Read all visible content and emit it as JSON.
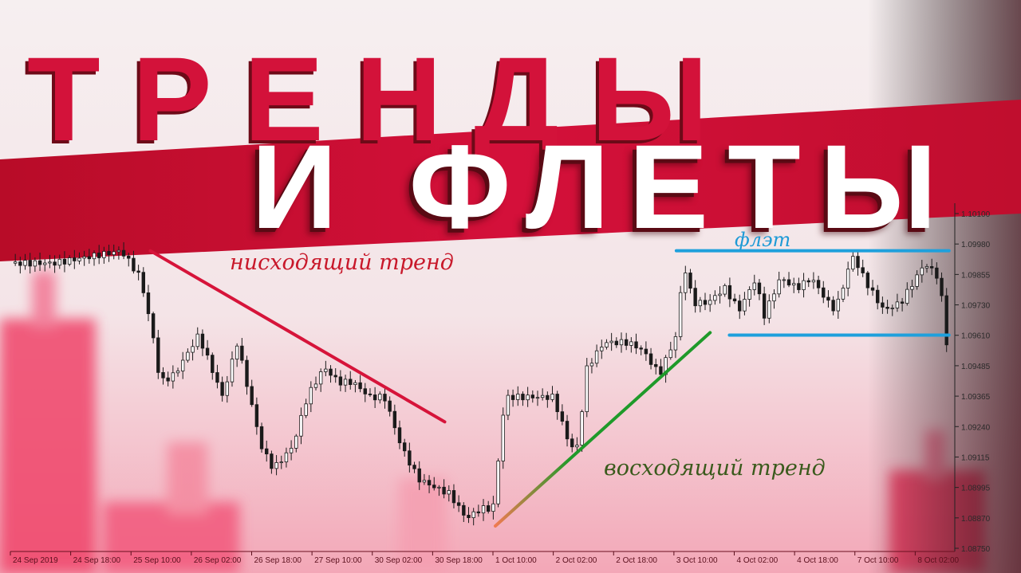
{
  "title": {
    "line1": "ТРЕНДЫ",
    "line2": "И ФЛЕТЫ"
  },
  "colors": {
    "band": "#c8102e",
    "title_line1": "#d3123a",
    "title_line2": "#ffffff",
    "downtrend": "#d6143a",
    "uptrend_start": "#f07a50",
    "uptrend_end": "#1f9a2a",
    "flat": "#1ea0dc",
    "candles": "#1a1a1a"
  },
  "chart_data": {
    "type": "candlestick",
    "x_tick_labels": [
      "24 Sep 2019",
      "24 Sep 18:00",
      "25 Sep 10:00",
      "26 Sep 02:00",
      "26 Sep 18:00",
      "27 Sep 10:00",
      "30 Sep 02:00",
      "30 Sep 18:00",
      "1 Oct 10:00",
      "2 Oct 02:00",
      "2 Oct 18:00",
      "3 Oct 10:00",
      "4 Oct 02:00",
      "4 Oct 18:00",
      "7 Oct 10:00",
      "8 Oct 02:00"
    ],
    "y_tick_labels": [
      "1.10100",
      "1.09980",
      "1.09855",
      "1.09730",
      "1.09610",
      "1.09485",
      "1.09365",
      "1.09240",
      "1.09115",
      "1.08995",
      "1.08870",
      "1.08750"
    ],
    "ylim": [
      1.0875,
      1.101
    ],
    "price_path": [
      [
        0,
        1.099
      ],
      [
        0.9,
        1.099
      ],
      [
        2.3,
        1.0995
      ],
      [
        2.7,
        1.0984
      ],
      [
        2.95,
        1.0961
      ],
      [
        3.1,
        1.0942
      ],
      [
        3.4,
        1.0945
      ],
      [
        3.9,
        1.0961
      ],
      [
        4.4,
        1.0936
      ],
      [
        4.7,
        1.0958
      ],
      [
        5.2,
        1.0916
      ],
      [
        5.45,
        1.0907
      ],
      [
        5.85,
        1.0916
      ],
      [
        6.15,
        1.0936
      ],
      [
        6.5,
        1.0948
      ],
      [
        6.8,
        1.0942
      ],
      [
        7.1,
        1.0942
      ],
      [
        7.45,
        1.0936
      ],
      [
        7.75,
        1.0936
      ],
      [
        8.1,
        1.0916
      ],
      [
        8.45,
        1.0903
      ],
      [
        8.75,
        1.09
      ],
      [
        9.1,
        1.0897
      ],
      [
        9.45,
        1.0887
      ],
      [
        9.75,
        1.0891
      ],
      [
        10.0,
        1.0891
      ],
      [
        10.25,
        1.0936
      ],
      [
        10.75,
        1.0936
      ],
      [
        11.25,
        1.0936
      ],
      [
        11.6,
        1.0916
      ],
      [
        11.75,
        1.0916
      ],
      [
        11.95,
        1.0948
      ],
      [
        12.3,
        1.0958
      ],
      [
        12.8,
        1.0958
      ],
      [
        13.1,
        1.0955
      ],
      [
        13.45,
        1.0945
      ],
      [
        13.8,
        1.0961
      ],
      [
        13.95,
        1.099
      ],
      [
        14.15,
        1.0974
      ],
      [
        14.45,
        1.0974
      ],
      [
        14.8,
        1.098
      ],
      [
        15.1,
        1.0971
      ],
      [
        15.45,
        1.0984
      ],
      [
        15.6,
        1.0968
      ],
      [
        15.95,
        1.0984
      ],
      [
        16.3,
        1.098
      ],
      [
        16.6,
        1.0984
      ],
      [
        16.95,
        1.0974
      ],
      [
        17.1,
        1.0971
      ],
      [
        17.45,
        1.0993
      ],
      [
        17.8,
        1.098
      ],
      [
        18.1,
        1.0971
      ],
      [
        18.45,
        1.0974
      ],
      [
        18.95,
        1.099
      ],
      [
        19.25,
        1.0984
      ],
      [
        19.4,
        1.0958
      ]
    ],
    "trendlines": [
      {
        "label": "нисходящий тренд",
        "from": [
          2.9,
          1.0995
        ],
        "to": [
          9.0,
          1.0926
        ]
      },
      {
        "label": "восходящий тренд",
        "from": [
          10.05,
          1.0884
        ],
        "to": [
          14.5,
          1.0962
        ]
      }
    ],
    "flat_range": {
      "label": "флэт",
      "top": 1.0995,
      "bottom": 1.0961,
      "top_from": 13.8,
      "bottom_from": 14.9,
      "to": 19.45
    }
  }
}
